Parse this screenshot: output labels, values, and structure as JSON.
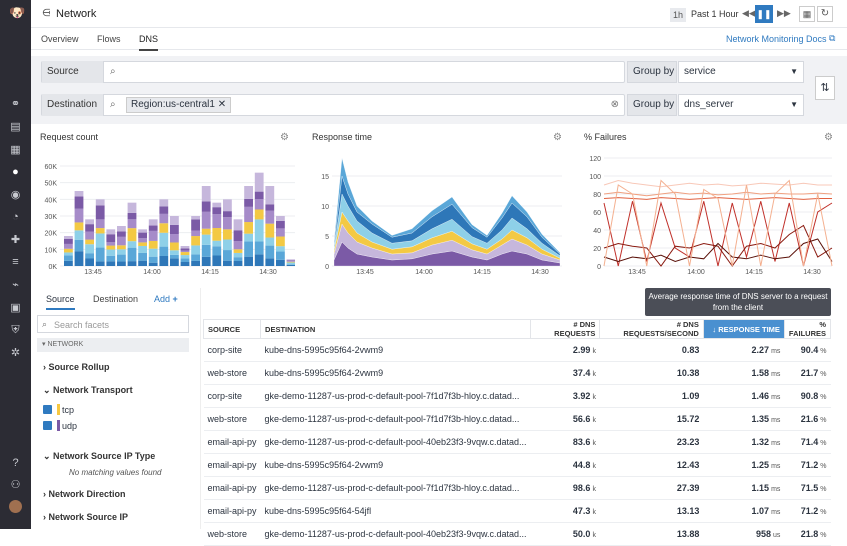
{
  "header": {
    "title": "Network",
    "time_short": "1h",
    "time_label": "Past 1 Hour"
  },
  "tabs": [
    "Overview",
    "Flows",
    "DNS"
  ],
  "docs_link": "Network Monitoring Docs",
  "filters": {
    "source_label": "Source",
    "destination_label": "Destination",
    "destination_tag": "Region:us-central1",
    "groupby_label": "Group by",
    "groupby1": "service",
    "groupby2": "dns_server"
  },
  "charts": {
    "request": {
      "title": "Request count",
      "yticks": [
        "60K",
        "50K",
        "40K",
        "30K",
        "20K",
        "10K",
        "0K"
      ],
      "xticks": [
        "13:45",
        "14:00",
        "14:15",
        "14:30"
      ]
    },
    "response": {
      "title": "Response time",
      "yticks": [
        "15",
        "10",
        "5",
        "0"
      ],
      "xticks": [
        "13:45",
        "14:00",
        "14:15",
        "14:30"
      ]
    },
    "failures": {
      "title": "% Failures",
      "yticks": [
        "120",
        "100",
        "80",
        "60",
        "40",
        "20",
        "0"
      ],
      "xticks": [
        "13:45",
        "14:00",
        "14:15",
        "14:30"
      ]
    }
  },
  "chart_data": [
    {
      "type": "bar",
      "title": "Request count",
      "categories": [
        "13:45",
        "14:00",
        "14:15",
        "14:30"
      ],
      "ylim": [
        0,
        60000
      ]
    },
    {
      "type": "area",
      "title": "Response time",
      "categories": [
        "13:45",
        "14:00",
        "14:15",
        "14:30"
      ],
      "ylim": [
        0,
        15
      ]
    },
    {
      "type": "line",
      "title": "% Failures",
      "categories": [
        "13:45",
        "14:00",
        "14:15",
        "14:30"
      ],
      "ylim": [
        0,
        120
      ]
    }
  ],
  "facets": {
    "tab_source": "Source",
    "tab_destination": "Destination",
    "add": "Add",
    "search_placeholder": "Search facets",
    "section": "NETWORK",
    "rollup": "Source Rollup",
    "transport": "Network Transport",
    "tcp": "tcp",
    "udp": "udp",
    "src_ip_type": "Network Source IP Type",
    "no_match": "No matching values found",
    "direction": "Network Direction",
    "src_ip": "Network Source IP"
  },
  "tooltip": "Average response time of DNS server to a request from the client",
  "table": {
    "headers": [
      "SOURCE",
      "DESTINATION",
      "# DNS REQUESTS",
      "# DNS REQUESTS/SECOND",
      "RESPONSE TIME",
      "% FAILURES"
    ],
    "rows": [
      [
        "corp-site",
        "kube-dns-5995c95f64-2vwm9",
        "2.99",
        "k",
        "0.83",
        "2.27",
        "ms",
        "90.4",
        "%"
      ],
      [
        "web-store",
        "kube-dns-5995c95f64-2vwm9",
        "37.4",
        "k",
        "10.38",
        "1.58",
        "ms",
        "21.7",
        "%"
      ],
      [
        "corp-site",
        "gke-demo-11287-us-prod-c-default-pool-7f1d7f3b-hloy.c.datad...",
        "3.92",
        "k",
        "1.09",
        "1.46",
        "ms",
        "90.8",
        "%"
      ],
      [
        "web-store",
        "gke-demo-11287-us-prod-c-default-pool-7f1d7f3b-hloy.c.datad...",
        "56.6",
        "k",
        "15.72",
        "1.35",
        "ms",
        "21.6",
        "%"
      ],
      [
        "email-api-py",
        "gke-demo-11287-us-prod-c-default-pool-40eb23f3-9vqw.c.datad...",
        "83.6",
        "k",
        "23.23",
        "1.32",
        "ms",
        "71.4",
        "%"
      ],
      [
        "email-api-py",
        "kube-dns-5995c95f64-2vwm9",
        "44.8",
        "k",
        "12.43",
        "1.25",
        "ms",
        "71.2",
        "%"
      ],
      [
        "email-api-py",
        "gke-demo-11287-us-prod-c-default-pool-7f1d7f3b-hloy.c.datad...",
        "98.6",
        "k",
        "27.39",
        "1.15",
        "ms",
        "71.5",
        "%"
      ],
      [
        "email-api-py",
        "kube-dns-5995c95f64-54jfl",
        "47.3",
        "k",
        "13.13",
        "1.07",
        "ms",
        "71.2",
        "%"
      ],
      [
        "web-store",
        "gke-demo-11287-us-prod-c-default-pool-40eb23f3-9vqw.c.datad...",
        "50.0",
        "k",
        "13.88",
        "958",
        "us",
        "21.8",
        "%"
      ]
    ]
  }
}
